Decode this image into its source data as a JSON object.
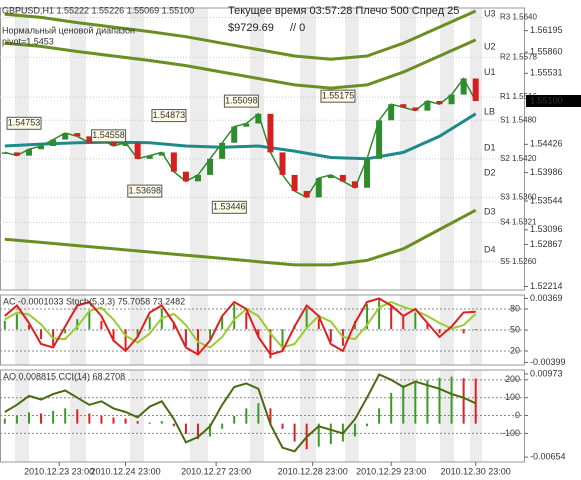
{
  "chart_data": [
    {
      "type": "line",
      "title": "GBPUSD,H1  1.55222 1.55226 1.55069 1.55100",
      "subtitle": "Текущее время 03:57:28 Плечо 500 Спред 25",
      "balance": "$9729.69",
      "balance_note": "// 0",
      "indicator_label": "Нормальный ценовой диапазон",
      "pivot_label": "pivot=1.5453",
      "xlim": [
        -0.4,
        43
      ],
      "ylim": [
        1.52159,
        1.56547
      ],
      "yticks": [
        1.56195,
        {
          "value": 1.5586,
          "label": "1.55860"
        },
        1.55531,
        1.54426,
        1.53986,
        1.53544,
        1.53096,
        1.52867,
        1.52214
      ],
      "current": {
        "value": 1.551,
        "label": "1.55100"
      },
      "series": [
        {
          "color": "#2e8b2e",
          "values": [
            1.543,
            1.5425,
            1.5435,
            1.544,
            1.545,
            1.546,
            1.5455,
            1.5445,
            1.545,
            1.544,
            1.5445,
            1.542,
            1.5425,
            1.543,
            1.54,
            1.5385,
            1.5395,
            1.542,
            1.5445,
            1.547,
            1.5475,
            1.549,
            1.543,
            1.5395,
            1.537,
            1.536,
            1.539,
            1.5395,
            1.5385,
            1.5375,
            1.542,
            1.548,
            1.5505,
            1.55,
            1.5495,
            1.551,
            1.5505,
            1.552,
            1.5545,
            1.551
          ]
        }
      ],
      "bands": [
        {
          "color": "#6b8e23",
          "x": [
            0,
            3,
            6,
            9,
            12,
            15,
            18,
            21,
            24,
            27,
            30,
            33,
            36,
            39
          ],
          "values": [
            1.5645,
            1.564,
            1.5632,
            1.5625,
            1.5618,
            1.561,
            1.56,
            1.559,
            1.558,
            1.5575,
            1.558,
            1.56,
            1.5625,
            1.565
          ]
        },
        {
          "color": "#6b8e23",
          "x": [
            0,
            3,
            6,
            9,
            12,
            15,
            18,
            21,
            24,
            27,
            30,
            33,
            36,
            39
          ],
          "values": [
            1.56,
            1.5595,
            1.5587,
            1.558,
            1.5573,
            1.5565,
            1.5555,
            1.5545,
            1.5535,
            1.553,
            1.5535,
            1.5555,
            1.558,
            1.5605
          ]
        },
        {
          "color": "#1f8a8a",
          "x": [
            0,
            3,
            6,
            9,
            12,
            15,
            18,
            21,
            24,
            27,
            30,
            33,
            36,
            39
          ],
          "values": [
            1.544,
            1.5443,
            1.5445,
            1.5446,
            1.5445,
            1.544,
            1.5438,
            1.544,
            1.5432,
            1.5422,
            1.542,
            1.543,
            1.5455,
            1.549
          ]
        },
        {
          "color": "#6b8e23",
          "x": [
            0,
            3,
            6,
            9,
            12,
            15,
            18,
            21,
            24,
            27,
            30,
            33,
            36,
            39
          ],
          "values": [
            1.5295,
            1.529,
            1.5285,
            1.528,
            1.5275,
            1.527,
            1.5265,
            1.526,
            1.5255,
            1.5255,
            1.5262,
            1.528,
            1.531,
            1.534
          ]
        }
      ],
      "band_labels": [
        {
          "label": "U3",
          "value": 1.5645
        },
        {
          "label": "U2",
          "value": 1.5594
        },
        {
          "label": "U1",
          "value": 1.5554
        },
        {
          "label": "LB",
          "value": 1.5493
        },
        {
          "label": "D1",
          "value": 1.5437
        },
        {
          "label": "D2",
          "value": 1.5398
        },
        {
          "label": "D3",
          "value": 1.5337
        },
        {
          "label": "D4",
          "value": 1.5278
        }
      ],
      "levels": [
        {
          "label": "R3 1.5640",
          "value": 1.564
        },
        {
          "label": "R2 1.5578",
          "value": 1.5578
        },
        {
          "label": "R1 1.5516",
          "value": 1.5516
        },
        {
          "label": "S1 1.5480",
          "value": 1.548
        },
        {
          "label": "S2 1.5420",
          "value": 1.542
        },
        {
          "label": "S3 1.5360",
          "value": 1.536
        },
        {
          "label": "S4 1.5321",
          "value": 1.5321
        },
        {
          "label": "S5 1.5260",
          "value": 1.526
        }
      ],
      "annotations": [
        {
          "x": 3,
          "value": 1.54753
        },
        {
          "x": 10,
          "value": 1.54558
        },
        {
          "x": 15,
          "value": 1.54873
        },
        {
          "x": 21,
          "value": 1.55098
        },
        {
          "x": 29,
          "value": 1.55175
        },
        {
          "x": 13,
          "value": 1.53698
        },
        {
          "x": 20,
          "value": 1.53446
        }
      ]
    },
    {
      "type": "oscillator",
      "title": "AC -0.0001033 Stoch(5,3,3) 75.7058 73.2482",
      "ylim": [
        -0.0043,
        0.0041
      ],
      "yticks": [
        0.00369,
        -0.00399
      ],
      "y2lim": [
        0,
        100
      ],
      "y2ticks": [
        80,
        50,
        20
      ],
      "series": [
        {
          "type": "bar",
          "color": "#3a9d23",
          "values": [
            0.001,
            0.0018,
            0.0005,
            -0.0012,
            -0.002,
            -0.0005,
            0.0012,
            0.0022,
            0.001,
            -0.0015,
            -0.0025,
            -0.001,
            0.0015,
            0.0025,
            0.0008,
            -0.002,
            -0.003,
            -0.0012,
            0.0015,
            0.003,
            0.002,
            -0.001,
            -0.0035,
            -0.0025,
            0.0005,
            0.0025,
            0.0012,
            -0.0015,
            -0.002,
            0.001,
            0.003,
            0.0036,
            0.0028,
            0.0015,
            0.002,
            0.0008,
            -0.0005,
            0.0002,
            -0.0005,
            -0.0001
          ]
        },
        {
          "type": "line",
          "axis": "y2",
          "color": "#9acd32",
          "values": [
            65,
            75,
            72,
            58,
            38,
            37,
            55,
            77,
            82,
            65,
            42,
            32,
            45,
            67,
            73,
            57,
            33,
            25,
            40,
            65,
            80,
            70,
            45,
            25,
            30,
            53,
            70,
            62,
            40,
            37,
            57,
            82,
            90,
            83,
            78,
            70,
            60,
            52,
            57,
            73
          ]
        },
        {
          "type": "line",
          "axis": "y2",
          "color": "#e02020",
          "values": [
            70,
            85,
            60,
            30,
            25,
            55,
            85,
            90,
            70,
            35,
            20,
            40,
            75,
            85,
            60,
            25,
            15,
            35,
            70,
            90,
            80,
            40,
            15,
            20,
            55,
            85,
            70,
            30,
            20,
            60,
            90,
            95,
            85,
            70,
            80,
            60,
            40,
            55,
            75,
            76
          ]
        }
      ]
    },
    {
      "type": "oscillator",
      "title": "AO 0.008815 CCI(14) 68.2708",
      "ylim": [
        -0.0075,
        0.0105
      ],
      "yticks": [
        0.00973,
        -0.00654
      ],
      "y2lim": [
        -260,
        255
      ],
      "y2ticks": [
        200,
        100,
        0,
        -100
      ],
      "xticks": [
        {
          "value": 4.5,
          "label": "2010.12.23 23:00"
        },
        {
          "value": 10,
          "label": "2010.12.24 23:00"
        },
        {
          "value": 17.5,
          "label": "2010.12.27 23:00"
        },
        {
          "value": 25.5,
          "label": "2010.12.28 23:00"
        },
        {
          "value": 32,
          "label": "2010.12.29 23:00"
        },
        {
          "value": 39,
          "label": "2010.12.30 23:00"
        }
      ],
      "series": [
        {
          "type": "bar",
          "color": "#3a9d23",
          "values": [
            0.001,
            0.0015,
            0.0022,
            0.002,
            0.0025,
            0.003,
            0.0028,
            0.002,
            0.0015,
            0.0012,
            0.001,
            0.0005,
            0.0002,
            0.0005,
            -0.0005,
            -0.002,
            -0.003,
            -0.0025,
            -0.001,
            0.0015,
            0.003,
            0.004,
            0.003,
            -0.001,
            -0.0035,
            -0.005,
            -0.0045,
            -0.004,
            -0.0035,
            -0.0025,
            -0.0005,
            0.003,
            0.006,
            0.0075,
            0.008,
            0.0085,
            0.009,
            0.0092,
            0.0089,
            0.008815
          ]
        },
        {
          "type": "line",
          "axis": "y2",
          "color": "#4b6b12",
          "values": [
            20,
            60,
            110,
            90,
            120,
            140,
            100,
            60,
            80,
            40,
            20,
            -10,
            50,
            80,
            -20,
            -150,
            -120,
            -60,
            60,
            160,
            180,
            150,
            -50,
            -180,
            -200,
            -120,
            -60,
            -80,
            -100,
            -20,
            100,
            230,
            200,
            160,
            190,
            170,
            150,
            120,
            100,
            68.27
          ]
        }
      ]
    }
  ]
}
